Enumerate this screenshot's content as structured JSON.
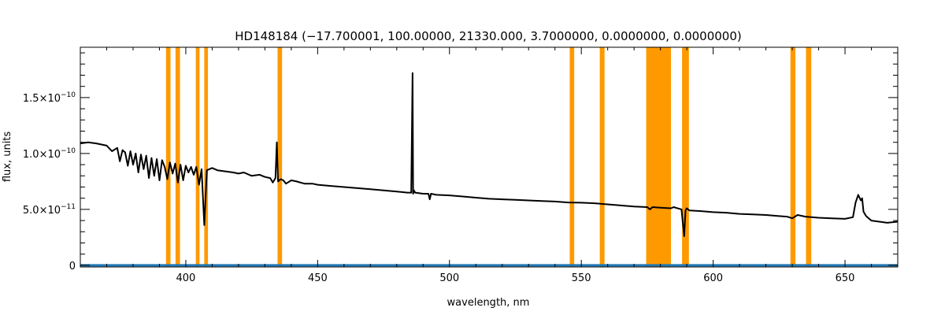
{
  "chart_data": {
    "type": "line",
    "title": "HD148184    (−17.700001, 100.00000, 21330.000, 3.7000000, 0.0000000, 0.0000000)",
    "xlabel": "wavelength, nm",
    "ylabel": "flux, units",
    "xlim": [
      360,
      670
    ],
    "ylim": [
      -1.5e-12,
      1.95e-10
    ],
    "x_ticks": [
      {
        "value": 400,
        "label": "400"
      },
      {
        "value": 450,
        "label": "450"
      },
      {
        "value": 500,
        "label": "500"
      },
      {
        "value": 550,
        "label": "550"
      },
      {
        "value": 600,
        "label": "600"
      },
      {
        "value": 650,
        "label": "650"
      }
    ],
    "y_ticks": [
      {
        "value": 0,
        "mant": "0",
        "exp": ""
      },
      {
        "value": 5e-11,
        "mant": "5.0×10",
        "exp": "−11"
      },
      {
        "value": 1e-10,
        "mant": "1.0×10",
        "exp": "−10"
      },
      {
        "value": 1.5e-10,
        "mant": "1.5×10",
        "exp": "−10"
      }
    ],
    "mask_bands": [
      [
        392.5,
        394.2
      ],
      [
        396.1,
        397.8
      ],
      [
        403.8,
        405.2
      ],
      [
        407.0,
        408.4
      ],
      [
        434.8,
        436.5
      ],
      [
        545.6,
        547.3
      ],
      [
        557.0,
        558.8
      ],
      [
        574.6,
        584.0
      ],
      [
        588.2,
        590.8
      ],
      [
        629.3,
        631.2
      ],
      [
        635.2,
        637.2
      ]
    ],
    "mask_color": "#ff9900",
    "series": [
      {
        "color": "#000000",
        "x": [
          360,
          363,
          366,
          368,
          370,
          372,
          374,
          375,
          376,
          377,
          378,
          379,
          380,
          381,
          382,
          383,
          384,
          385,
          386,
          387,
          388,
          389,
          390,
          391,
          392,
          393,
          394,
          395,
          396,
          397,
          398,
          399,
          400,
          401,
          402,
          403,
          404,
          405,
          406,
          407,
          408,
          410,
          412,
          415,
          418,
          420,
          422,
          425,
          428,
          430,
          432,
          433,
          434,
          434.5,
          435,
          436,
          437,
          438,
          440,
          442,
          445,
          448,
          450,
          455,
          460,
          465,
          470,
          475,
          480,
          484,
          485.5,
          486,
          486.2,
          486.5,
          487,
          490,
          492,
          492.5,
          493,
          495,
          500,
          505,
          510,
          515,
          520,
          525,
          530,
          535,
          540,
          545,
          550,
          555,
          560,
          565,
          570,
          575,
          576,
          577,
          580,
          584,
          585,
          588,
          589,
          589.5,
          590,
          591,
          595,
          600,
          605,
          610,
          615,
          620,
          625,
          628,
          630,
          632,
          635,
          640,
          645,
          650,
          653,
          654,
          655,
          656,
          656.5,
          657,
          658,
          660,
          663,
          666,
          670
        ],
        "y": [
          1.09e-10,
          1.1e-10,
          1.09e-10,
          1.08e-10,
          1.07e-10,
          1.02e-10,
          1.05e-10,
          9.3e-11,
          1.03e-10,
          1.01e-10,
          8.9e-11,
          1.02e-10,
          9e-11,
          1e-10,
          8.3e-11,
          9.9e-11,
          8.6e-11,
          9.8e-11,
          7.8e-11,
          9.6e-11,
          8e-11,
          9.5e-11,
          7.6e-11,
          9.4e-11,
          8.8e-11,
          7.7e-11,
          9.2e-11,
          8.2e-11,
          9.1e-11,
          7.4e-11,
          9e-11,
          7.6e-11,
          8.9e-11,
          8.3e-11,
          8.8e-11,
          8.1e-11,
          8.8e-11,
          7.2e-11,
          8.6e-11,
          3.6e-11,
          8.5e-11,
          8.7e-11,
          8.5e-11,
          8.4e-11,
          8.3e-11,
          8.2e-11,
          8.3e-11,
          8e-11,
          8.1e-11,
          7.9e-11,
          7.8e-11,
          7.4e-11,
          7.8e-11,
          1.1e-10,
          7.5e-11,
          7.7e-11,
          7.6e-11,
          7.3e-11,
          7.6e-11,
          7.5e-11,
          7.3e-11,
          7.3e-11,
          7.2e-11,
          7.1e-11,
          7e-11,
          6.9e-11,
          6.8e-11,
          6.7e-11,
          6.6e-11,
          6.5e-11,
          6.5e-11,
          1.72e-10,
          6.4e-11,
          6.7e-11,
          6.5e-11,
          6.4e-11,
          6.4e-11,
          5.9e-11,
          6.4e-11,
          6.3e-11,
          6.25e-11,
          6.15e-11,
          6.05e-11,
          5.95e-11,
          5.9e-11,
          5.85e-11,
          5.8e-11,
          5.75e-11,
          5.7e-11,
          5.62e-11,
          5.6e-11,
          5.55e-11,
          5.45e-11,
          5.35e-11,
          5.25e-11,
          5.2e-11,
          5e-11,
          5.2e-11,
          5.15e-11,
          5.1e-11,
          5.2e-11,
          5e-11,
          2.6e-11,
          4.9e-11,
          5.1e-11,
          4.9e-11,
          4.85e-11,
          4.75e-11,
          4.7e-11,
          4.6e-11,
          4.55e-11,
          4.5e-11,
          4.4e-11,
          4.35e-11,
          4.2e-11,
          4.5e-11,
          4.35e-11,
          4.25e-11,
          4.2e-11,
          4.15e-11,
          4.3e-11,
          5.6e-11,
          6.3e-11,
          5.8e-11,
          6e-11,
          4.8e-11,
          4.4e-11,
          4e-11,
          3.9e-11,
          3.8e-11,
          3.9e-11
        ]
      },
      {
        "color": "#1f77b4",
        "x": [
          360,
          670
        ],
        "y": [
          0,
          0
        ]
      }
    ]
  }
}
